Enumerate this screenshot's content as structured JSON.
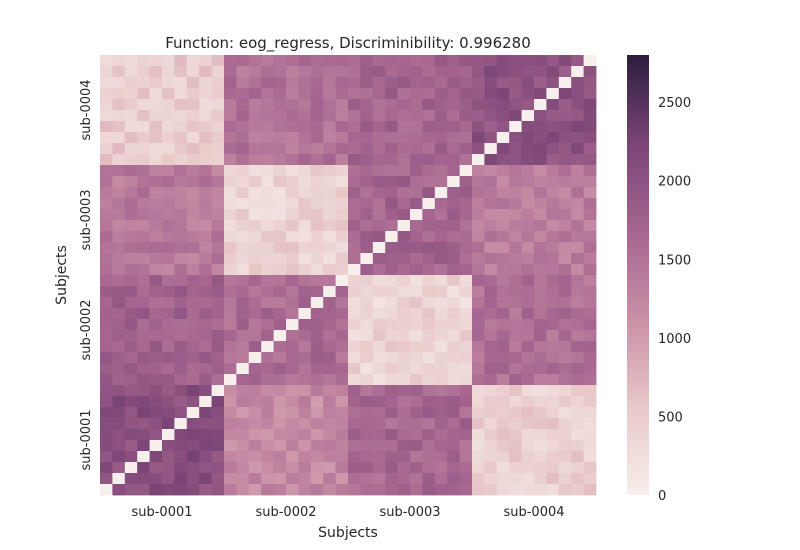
{
  "chart_data": {
    "type": "heatmap",
    "title": "Function: eog_regress, Discriminibility: 0.996280",
    "xlabel": "Subjects",
    "ylabel": "Subjects",
    "x_categories": [
      "sub-0001",
      "sub-0002",
      "sub-0003",
      "sub-0004"
    ],
    "y_categories_top_to_bottom": [
      "sub-0004",
      "sub-0003",
      "sub-0002",
      "sub-0001"
    ],
    "scans_per_subject": 10,
    "value_range": [
      0,
      2800
    ],
    "colorbar_ticks": [
      0,
      500,
      1000,
      1500,
      2000,
      2500
    ],
    "colormap": [
      "#f7efec",
      "#e8c8c8",
      "#c98fa6",
      "#a66590",
      "#7a4575",
      "#2c1e3d"
    ],
    "block_means": {
      "rows_top_to_bottom": [
        "sub-0004",
        "sub-0003",
        "sub-0002",
        "sub-0001"
      ],
      "cols_left_to_right": [
        "sub-0001",
        "sub-0002",
        "sub-0003",
        "sub-0004"
      ],
      "values": [
        [
          500,
          1500,
          1700,
          2000
        ],
        [
          1400,
          400,
          1700,
          1350
        ],
        [
          1750,
          1600,
          380,
          1550
        ],
        [
          2050,
          1200,
          1650,
          450
        ]
      ]
    }
  }
}
